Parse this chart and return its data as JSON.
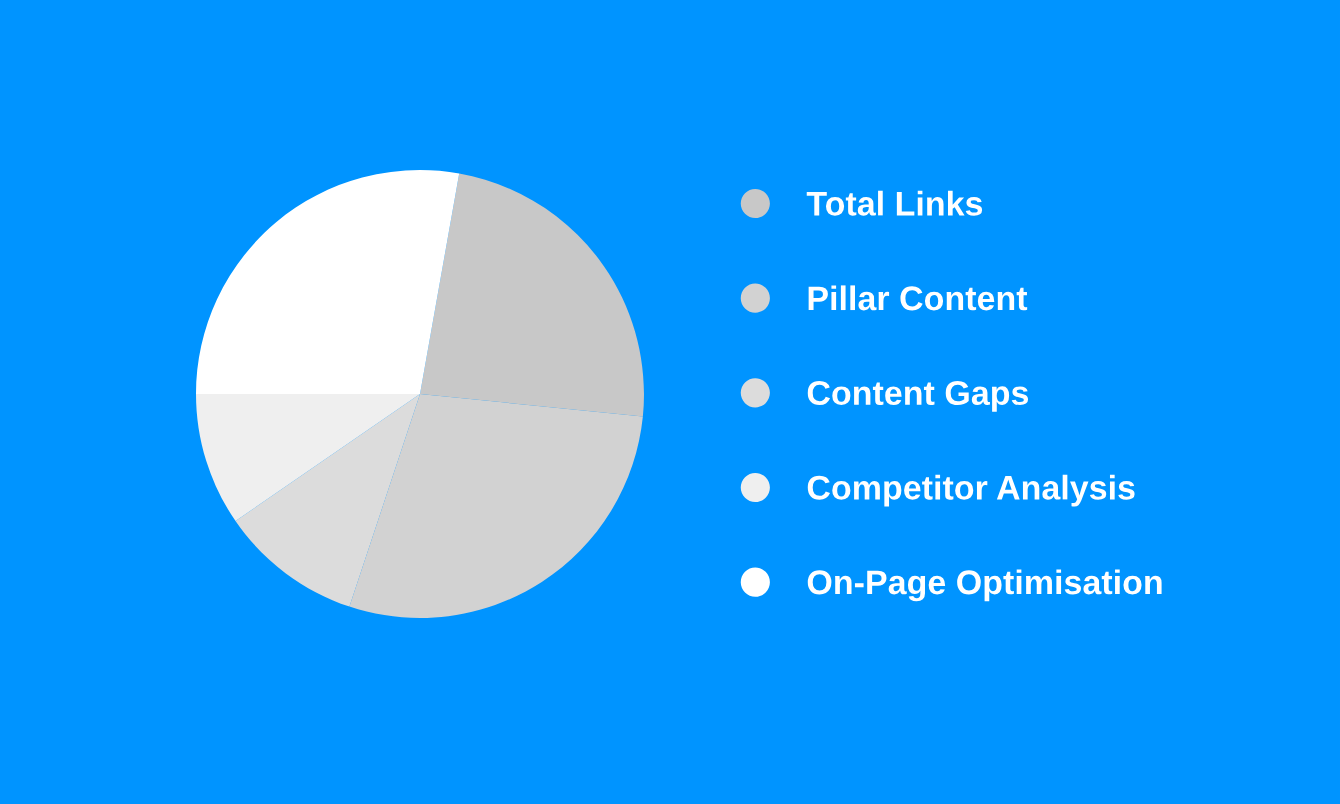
{
  "chart_data": {
    "type": "pie",
    "categories": [
      "Total Links",
      "Pillar Content",
      "Content Gaps",
      "Competitor Analysis",
      "On-Page Optimisation"
    ],
    "values": [
      23.8,
      28.5,
      10.3,
      9.6,
      27.8
    ],
    "colors": [
      "#c8c8c8",
      "#d2d2d2",
      "#dcdcdc",
      "#efefef",
      "#ffffff"
    ],
    "legend": "right"
  }
}
